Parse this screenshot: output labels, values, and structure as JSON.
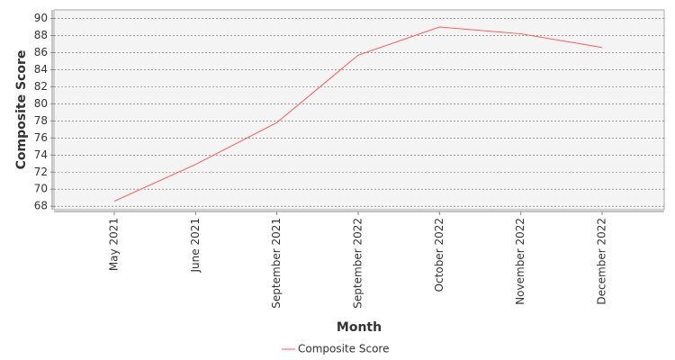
{
  "chart_data": {
    "type": "line",
    "x_label": "Month",
    "y_label": "Composite Score",
    "categories": [
      "May 2021",
      "June 2021",
      "September 2021",
      "September 2022",
      "October 2022",
      "November 2022",
      "December 2022"
    ],
    "series": [
      {
        "name": "Composite Score",
        "color": "#ff5a5a",
        "values": [
          68.6,
          72.9,
          77.8,
          85.7,
          89.0,
          88.2,
          86.6
        ]
      }
    ],
    "ylim": [
      67.6,
      91
    ],
    "yticks": [
      68,
      70,
      72,
      74,
      76,
      78,
      80,
      82,
      84,
      86,
      88,
      90
    ],
    "grid": true,
    "legend": "bottom"
  }
}
